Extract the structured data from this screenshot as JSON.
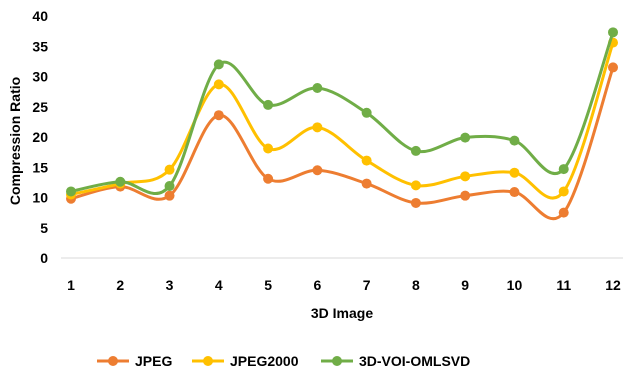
{
  "chart_data": {
    "type": "line",
    "title": "",
    "xlabel": "3D Image",
    "ylabel": "Compression Ratio",
    "categories": [
      "1",
      "2",
      "3",
      "4",
      "5",
      "6",
      "7",
      "8",
      "9",
      "10",
      "11",
      "12"
    ],
    "ylim": [
      0,
      40
    ],
    "yticks": [
      "0",
      "5",
      "10",
      "15",
      "20",
      "25",
      "30",
      "35",
      "40"
    ],
    "grid": false,
    "legend_position": "bottom",
    "smooth": true,
    "series": [
      {
        "name": "JPEG",
        "color": "#ED7D31",
        "values": [
          9.8,
          11.8,
          10.3,
          23.6,
          13.1,
          14.5,
          12.3,
          9.1,
          10.3,
          10.9,
          7.5,
          31.5
        ]
      },
      {
        "name": "JPEG2000",
        "color": "#FFC000",
        "values": [
          10.5,
          12.3,
          14.6,
          28.7,
          18.1,
          21.6,
          16.1,
          12.0,
          13.5,
          14.1,
          11.0,
          35.6
        ]
      },
      {
        "name": "3D-VOI-OMLSVD",
        "color": "#70AD47",
        "values": [
          11.0,
          12.6,
          11.9,
          32.0,
          25.3,
          28.1,
          24.0,
          17.7,
          19.9,
          19.4,
          14.7,
          37.3
        ]
      }
    ]
  }
}
